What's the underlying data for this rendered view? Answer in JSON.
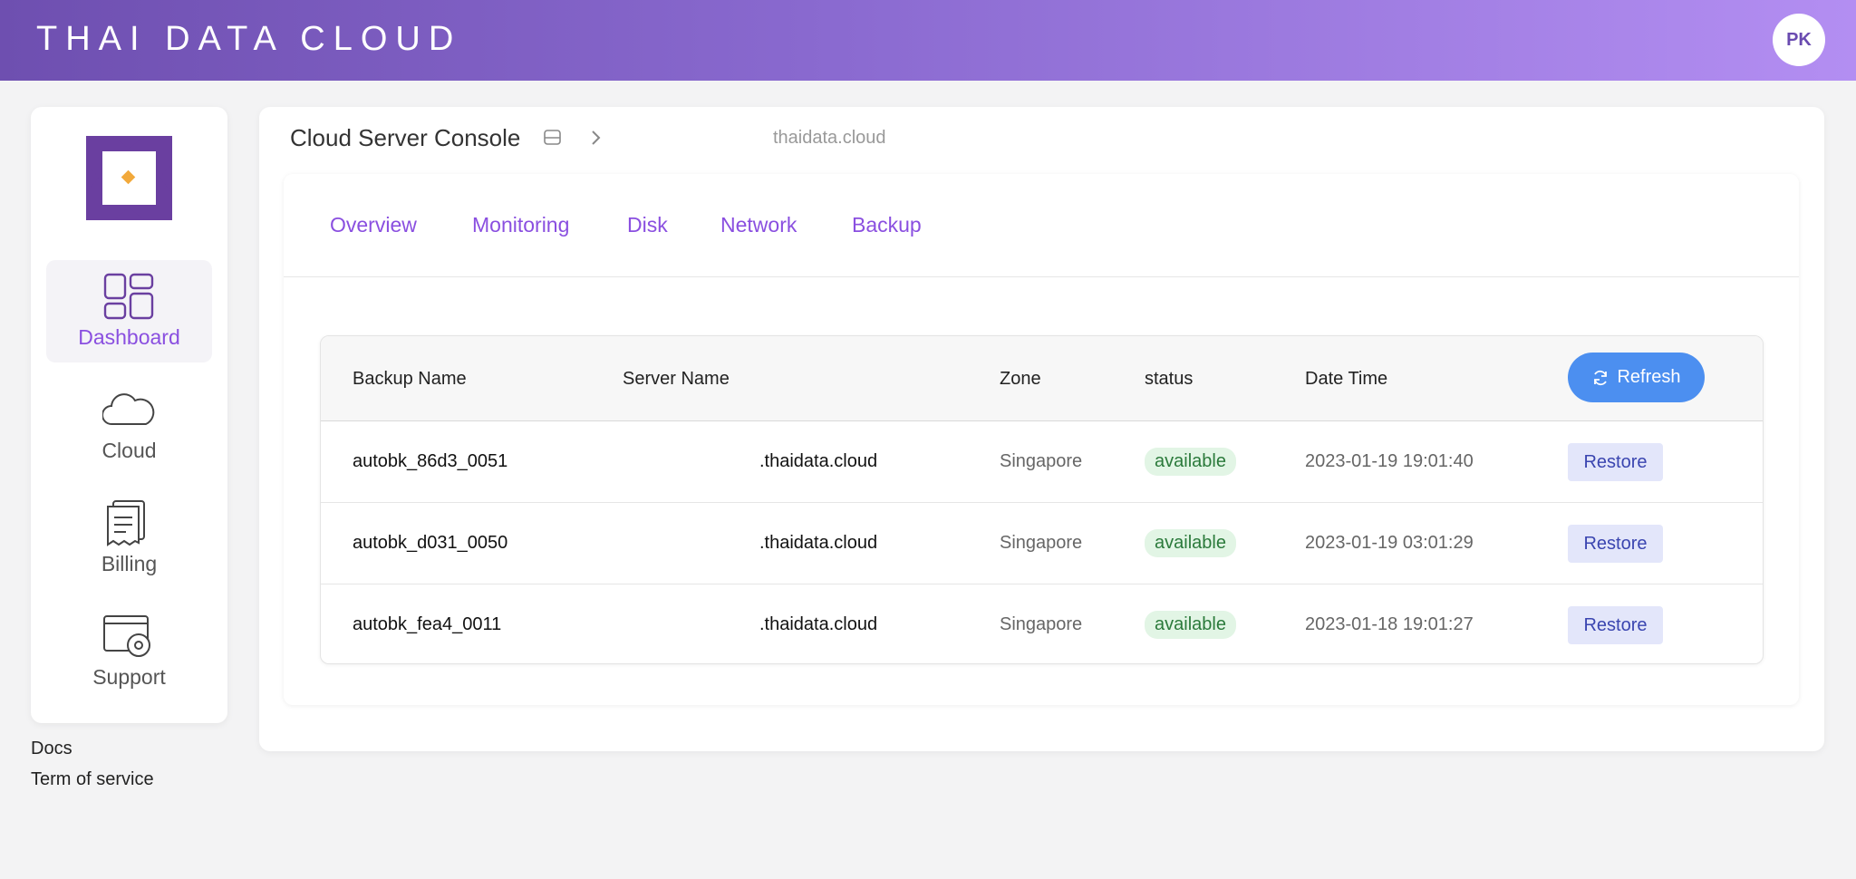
{
  "header": {
    "title": "THAI DATA CLOUD",
    "avatar": "PK"
  },
  "sidebar": {
    "items": [
      "Dashboard",
      "Cloud",
      "Billing",
      "Support"
    ],
    "links": [
      "Docs",
      "Term of service"
    ]
  },
  "breadcrumb": {
    "title": "Cloud Server Console",
    "domain": "thaidata.cloud"
  },
  "tabs": [
    "Overview",
    "Monitoring",
    "Disk",
    "Network",
    "Backup"
  ],
  "table": {
    "columns": [
      "Backup Name",
      "Server Name",
      "Zone",
      "status",
      "Date Time"
    ],
    "refresh": "Refresh",
    "rows": [
      [
        "autobk_86d3_0051",
        ".thaidata.cloud",
        "Singapore",
        "available",
        "2023-01-19 19:01:40",
        "Restore"
      ],
      [
        "autobk_d031_0050",
        ".thaidata.cloud",
        "Singapore",
        "available",
        "2023-01-19 03:01:29",
        "Restore"
      ],
      [
        "autobk_fea4_0011",
        ".thaidata.cloud",
        "Singapore",
        "available",
        "2023-01-18 19:01:27",
        "Restore"
      ]
    ]
  }
}
